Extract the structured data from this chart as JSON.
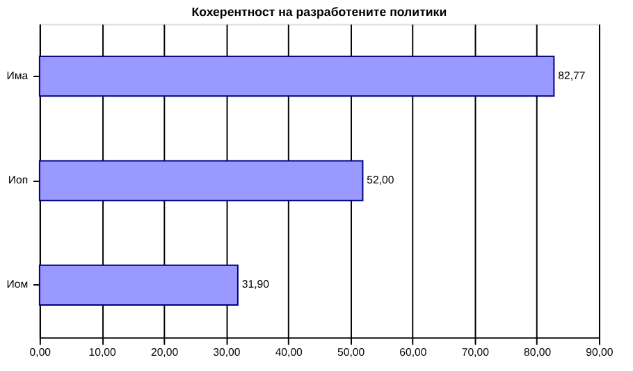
{
  "chart_data": {
    "type": "bar",
    "orientation": "horizontal",
    "title": "Кохерентност на разработените политики",
    "categories": [
      "Има",
      "Иоп",
      "Иом"
    ],
    "values": [
      82.77,
      52.0,
      31.9
    ],
    "value_labels": [
      "82,77",
      "52,00",
      "31,90"
    ],
    "color": "#9999ff",
    "xlim": [
      0,
      90
    ],
    "xticks": [
      {
        "value": 0,
        "label": "0,00"
      },
      {
        "value": 10,
        "label": "10,00"
      },
      {
        "value": 20,
        "label": "20,00"
      },
      {
        "value": 30,
        "label": "30,00"
      },
      {
        "value": 40,
        "label": "40,00"
      },
      {
        "value": 50,
        "label": "50,00"
      },
      {
        "value": 60,
        "label": "60,00"
      },
      {
        "value": 70,
        "label": "70,00"
      },
      {
        "value": 80,
        "label": "80,00"
      },
      {
        "value": 90,
        "label": "90,00"
      }
    ],
    "grid": "x"
  }
}
